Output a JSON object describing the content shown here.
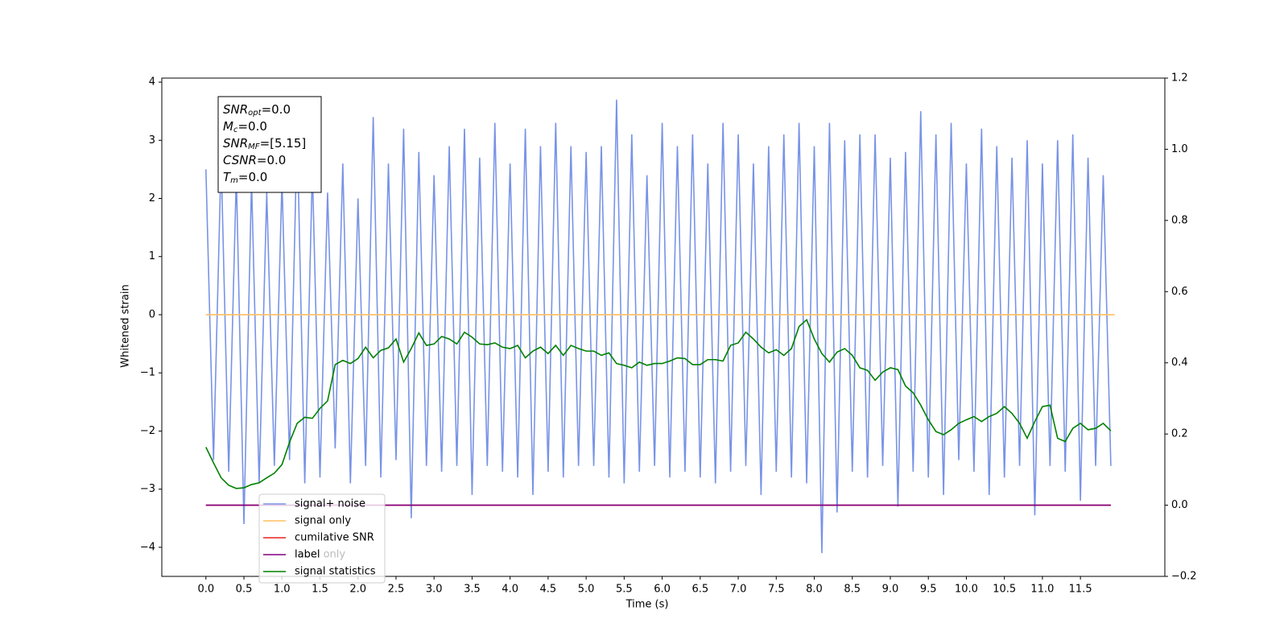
{
  "chart_data": {
    "type": "line",
    "xlabel": "Time (s)",
    "ylabel": "Whitened strain",
    "xlim": [
      -0.58,
      12.61
    ],
    "ylim": [
      -4.5,
      4.07
    ],
    "y2lim": [
      -0.2,
      1.2
    ],
    "xticks": [
      {
        "value": 0,
        "label": "0.0"
      },
      0.5,
      {
        "value": 1,
        "label": "1.0"
      },
      1.5,
      {
        "value": 2,
        "label": "2.0"
      },
      2.5,
      {
        "value": 3,
        "label": "3.0"
      },
      3.5,
      {
        "value": 4,
        "label": "4.0"
      },
      4.5,
      {
        "value": 5,
        "label": "5.0"
      },
      5.5,
      {
        "value": 6,
        "label": "6.0"
      },
      6.5,
      {
        "value": 7,
        "label": "7.0"
      },
      7.5,
      {
        "value": 8,
        "label": "8.0"
      },
      8.5,
      {
        "value": 9,
        "label": "9.0"
      },
      9.5,
      {
        "value": 10,
        "label": "10.0"
      },
      10.5,
      {
        "value": 11,
        "label": "11.0"
      },
      11.5
    ],
    "yticks": [
      {
        "value": -4,
        "label": "−4"
      },
      {
        "value": -3,
        "label": "−3"
      },
      {
        "value": -2,
        "label": "−2"
      },
      {
        "value": -1,
        "label": "−1"
      },
      0,
      1,
      2,
      3,
      4
    ],
    "y2ticks": [
      {
        "value": -0.2,
        "label": "−0.2"
      },
      {
        "value": 0,
        "label": "0.0"
      },
      0.2,
      0.4,
      0.6,
      0.8,
      {
        "value": 1,
        "label": "1.0"
      },
      1.2
    ],
    "x": [
      0,
      0.1,
      0.2,
      0.3,
      0.4,
      0.5,
      0.6,
      0.7,
      0.8,
      0.9,
      1,
      1.1,
      1.2,
      1.3,
      1.4,
      1.5,
      1.6,
      1.7,
      1.8,
      1.9,
      2,
      2.1,
      2.2,
      2.3,
      2.4,
      2.5,
      2.6,
      2.7,
      2.8,
      2.9,
      3,
      3.1,
      3.2,
      3.3,
      3.4,
      3.5,
      3.6,
      3.7,
      3.8,
      3.9,
      4,
      4.1,
      4.2,
      4.3,
      4.4,
      4.5,
      4.6,
      4.7,
      4.8,
      4.9,
      5,
      5.1,
      5.2,
      5.3,
      5.4,
      5.5,
      5.6,
      5.7,
      5.8,
      5.9,
      6,
      6.1,
      6.2,
      6.3,
      6.4,
      6.5,
      6.6,
      6.7,
      6.8,
      6.9,
      7,
      7.1,
      7.2,
      7.3,
      7.4,
      7.5,
      7.6,
      7.7,
      7.8,
      7.9,
      8,
      8.1,
      8.2,
      8.3,
      8.4,
      8.5,
      8.6,
      8.7,
      8.8,
      8.9,
      9,
      9.1,
      9.2,
      9.3,
      9.4,
      9.5,
      9.6,
      9.7,
      9.8,
      9.9,
      10,
      10.1,
      10.2,
      10.3,
      10.4,
      10.5,
      10.6,
      10.7,
      10.8,
      10.9,
      11,
      11.1,
      11.2,
      11.3,
      11.4,
      11.5,
      11.6,
      11.7,
      11.8,
      11.9
    ],
    "series": [
      {
        "name": "signal+ noise",
        "color": "#7893e6",
        "values": [
          2.5,
          -2.5,
          2.7,
          -2.7,
          2.4,
          -3.6,
          2.3,
          -2.9,
          2.1,
          -2.6,
          2.3,
          -2.5,
          3.2,
          -2.9,
          2.5,
          -2.8,
          2.1,
          -2.3,
          2.6,
          -2.9,
          2.0,
          -2.6,
          3.4,
          -2.8,
          2.6,
          -2.5,
          3.2,
          -3.5,
          2.8,
          -2.6,
          2.4,
          -2.7,
          2.9,
          -2.6,
          3.2,
          -3.1,
          2.7,
          -2.6,
          3.3,
          -2.7,
          2.6,
          -2.8,
          3.2,
          -3.1,
          2.9,
          -2.7,
          3.3,
          -2.8,
          2.9,
          -2.6,
          2.8,
          -2.6,
          2.9,
          -2.8,
          3.7,
          -2.9,
          3.1,
          -2.7,
          2.4,
          -2.6,
          3.3,
          -2.8,
          2.9,
          -2.7,
          3.1,
          -2.8,
          2.6,
          -2.9,
          3.3,
          -2.7,
          3.1,
          -2.6,
          2.6,
          -3.1,
          2.9,
          -2.7,
          3.1,
          -2.8,
          3.3,
          -2.9,
          2.9,
          -4.1,
          3.3,
          -3.4,
          3.0,
          -2.7,
          3.1,
          -2.8,
          3.1,
          -2.6,
          2.7,
          -3.3,
          2.8,
          -2.7,
          3.5,
          -2.8,
          3.1,
          -3.1,
          3.3,
          -2.5,
          2.6,
          -2.7,
          3.2,
          -3.1,
          2.9,
          -2.8,
          2.7,
          -2.6,
          3.0,
          -3.45,
          2.6,
          -2.6,
          3.0,
          -2.7,
          3.1,
          -3.2,
          2.7,
          -2.6,
          2.4,
          -2.6
        ]
      },
      {
        "name": "signal only",
        "color": "#ffbf5e",
        "x": [
          0,
          11.95
        ],
        "values": [
          0,
          0
        ]
      },
      {
        "name": "cumilative SNR",
        "color": "#e8201f",
        "axis": "y2",
        "x": [
          0,
          11.9
        ],
        "values": [
          0,
          0
        ]
      },
      {
        "name": "label",
        "color": "#800080",
        "axis": "y2",
        "x": [
          0,
          11.9
        ],
        "values": [
          0,
          0
        ]
      },
      {
        "name": "signal statistics",
        "color": "#008000",
        "axis": "y2",
        "values": [
          0.163,
          0.119,
          0.077,
          0.056,
          0.047,
          0.049,
          0.058,
          0.063,
          0.077,
          0.09,
          0.114,
          0.177,
          0.23,
          0.247,
          0.244,
          0.272,
          0.293,
          0.395,
          0.407,
          0.398,
          0.412,
          0.444,
          0.414,
          0.435,
          0.442,
          0.467,
          0.402,
          0.44,
          0.484,
          0.449,
          0.453,
          0.474,
          0.467,
          0.453,
          0.486,
          0.472,
          0.453,
          0.451,
          0.456,
          0.444,
          0.44,
          0.449,
          0.414,
          0.433,
          0.444,
          0.426,
          0.449,
          0.421,
          0.449,
          0.44,
          0.433,
          0.433,
          0.421,
          0.428,
          0.398,
          0.393,
          0.386,
          0.402,
          0.393,
          0.398,
          0.398,
          0.405,
          0.414,
          0.412,
          0.395,
          0.395,
          0.409,
          0.409,
          0.405,
          0.449,
          0.456,
          0.486,
          0.467,
          0.444,
          0.428,
          0.437,
          0.421,
          0.44,
          0.502,
          0.521,
          0.467,
          0.426,
          0.402,
          0.43,
          0.44,
          0.421,
          0.386,
          0.379,
          0.351,
          0.374,
          0.386,
          0.381,
          0.335,
          0.316,
          0.281,
          0.24,
          0.207,
          0.198,
          0.212,
          0.23,
          0.24,
          0.249,
          0.235,
          0.249,
          0.258,
          0.277,
          0.258,
          0.23,
          0.188,
          0.235,
          0.277,
          0.281,
          0.188,
          0.179,
          0.216,
          0.23,
          0.212,
          0.216,
          0.23,
          0.209
        ]
      }
    ],
    "legend_overlap_text": "label only",
    "info_box": [
      {
        "symbol": "SNR",
        "sub": "opt",
        "text": "=0.0"
      },
      {
        "symbol": "M",
        "sub": "c",
        "text": "=0.0"
      },
      {
        "symbol": "SNR",
        "sub": "MF",
        "text": "=[5.15]"
      },
      {
        "symbol": "CSNR",
        "text": "=0.0"
      },
      {
        "symbol": "T",
        "sub": "m",
        "text": "=0.0"
      }
    ]
  }
}
